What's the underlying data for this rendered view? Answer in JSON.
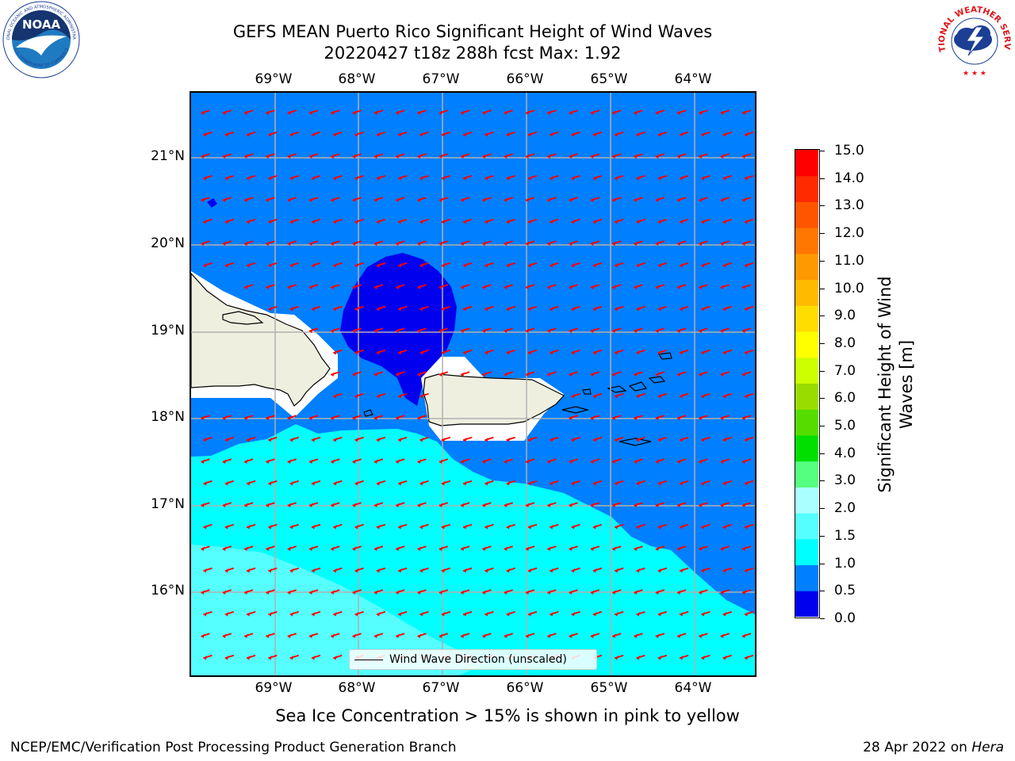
{
  "title": {
    "line1": "GEFS MEAN Puerto Rico Significant Height of Wind Waves",
    "line2": "20220427 t18z 288h fcst   Max: 1.92"
  },
  "map": {
    "lon_ticks": [
      "69°W",
      "68°W",
      "67°W",
      "66°W",
      "65°W",
      "64°W"
    ],
    "lat_ticks": [
      "21°N",
      "20°N",
      "19°N",
      "18°N",
      "17°N",
      "16°N"
    ],
    "extent": {
      "lon_min": -70.0,
      "lon_max": -63.25,
      "lat_min": 15.05,
      "lat_max": 21.75
    },
    "land_color": "#efefe0",
    "ocean_band_colors": {
      "0.0-0.5": "#0000ee",
      "0.5-1.0": "#007fff",
      "1.0-1.5": "#00ffff",
      "1.5-2.0": "#55ffff"
    },
    "arrow_color": "#ff0000",
    "grid": true
  },
  "legend": {
    "label": "Wind Wave Direction (unscaled)"
  },
  "colorbar": {
    "label": "Significant Height of Wind Waves [m]",
    "ticks": [
      "15.0",
      "14.0",
      "13.0",
      "12.0",
      "11.0",
      "10.0",
      "9.0",
      "8.0",
      "7.0",
      "6.0",
      "5.0",
      "4.0",
      "3.0",
      "2.0",
      "1.5",
      "1.0",
      "0.5",
      "0.0"
    ],
    "colors": [
      "#0000ee",
      "#007fff",
      "#00ffff",
      "#55ffff",
      "#aaffff",
      "#55ff80",
      "#00e000",
      "#55dd00",
      "#99dd00",
      "#ccff00",
      "#ffff00",
      "#ffdd00",
      "#ffbb00",
      "#ff9900",
      "#ff7700",
      "#ff5500",
      "#ff2a00",
      "#ff0000"
    ]
  },
  "ice_note": "Sea Ice Concentration > 15% is shown in pink to yellow",
  "footer": {
    "left": "NCEP/EMC/Verification Post Processing Product Generation Branch",
    "right_prefix": "28 Apr 2022 on ",
    "right_host": "Hera"
  },
  "logos": {
    "noaa_text": "NOAA",
    "noaa_ring_top": "NATIONAL OCEANIC AND ATMOSPHERIC ADMINISTRATION",
    "noaa_ring_bottom": "U.S. DEPARTMENT OF COMMERCE",
    "nws_ring": "NATIONAL WEATHER SERVICE"
  }
}
